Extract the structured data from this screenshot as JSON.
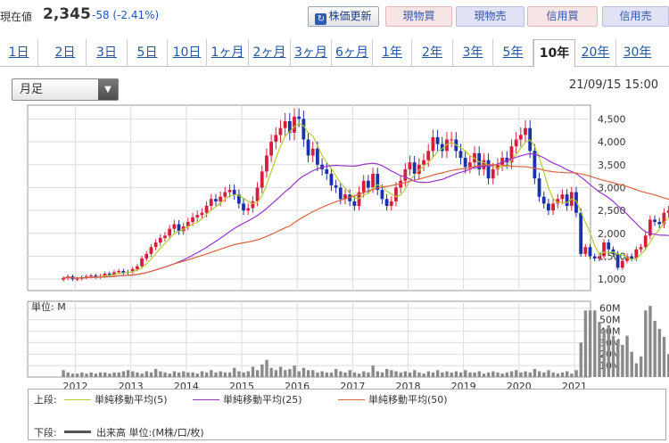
{
  "header": {
    "price_label": "現在値",
    "price": "2,345",
    "change": "-58 (-2.41%)",
    "buttons": {
      "refresh": "株価更新",
      "buy": "現物買",
      "sell": "現物売",
      "margin_buy": "信用買",
      "margin_sell": "信用売"
    }
  },
  "tabs": [
    "1日",
    "2日",
    "3日",
    "5日",
    "10日",
    "1ヶ月",
    "2ヶ月",
    "3ヶ月",
    "6ヶ月",
    "1年",
    "2年",
    "3年",
    "5年",
    "10年",
    "20年",
    "30年"
  ],
  "active_tab": "10年",
  "period_select": "月足",
  "datetime": "21/09/15 15:00",
  "volume_unit": "単位: M",
  "legend": {
    "upper_label": "上段:",
    "lower_label": "下段:",
    "ma5": "単純移動平均(5)",
    "ma25": "単純移動平均(25)",
    "ma50": "単純移動平均(50)",
    "volume": "出来高 単位:(M株/口/枚)"
  },
  "colors": {
    "up": "#d61e3c",
    "down": "#1a32a8",
    "ma5": "#b3cc33",
    "ma25": "#9933cc",
    "ma50": "#d9643f",
    "volume": "#8a8a8a"
  },
  "chart_data": {
    "type": "candlestick",
    "x_labels": [
      "2012",
      "2013",
      "2014",
      "2015",
      "2016",
      "2017",
      "2018",
      "2019",
      "2020",
      "2021"
    ],
    "price_ticks": [
      "4,500",
      "4,000",
      "3,500",
      "3,000",
      "2,500",
      "2,000",
      "1,500",
      "1,000"
    ],
    "price_range": [
      750,
      4800
    ],
    "volume_ticks": [
      "60M",
      "50M",
      "40M",
      "30M",
      "20M",
      "10M"
    ],
    "volume_range": [
      0,
      66
    ],
    "start": "2011-10",
    "close": [
      1020,
      1060,
      1000,
      1010,
      1040,
      1060,
      1080,
      1050,
      1070,
      1120,
      1090,
      1150,
      1180,
      1140,
      1160,
      1220,
      1280,
      1450,
      1550,
      1700,
      1800,
      1900,
      1950,
      2100,
      2200,
      2050,
      2150,
      2250,
      2350,
      2400,
      2450,
      2600,
      2750,
      2700,
      2800,
      2900,
      2950,
      2850,
      2650,
      2500,
      2550,
      2700,
      3000,
      3350,
      3700,
      4000,
      4150,
      4300,
      4450,
      4200,
      4550,
      4500,
      4050,
      3700,
      3850,
      3500,
      3400,
      3300,
      3050,
      3000,
      2750,
      2850,
      2700,
      2600,
      2900,
      3150,
      3000,
      3300,
      2950,
      2750,
      2600,
      2700,
      3000,
      3150,
      3400,
      3550,
      3300,
      3500,
      3600,
      3800,
      4100,
      3950,
      3800,
      4050,
      4050,
      3800,
      3650,
      3450,
      3550,
      3750,
      3400,
      3600,
      3200,
      3400,
      3500,
      3650,
      3550,
      3900,
      4050,
      4150,
      4300,
      3800,
      3200,
      2800,
      2650,
      2500,
      2650,
      2750,
      2850,
      2600,
      2900,
      2450,
      1550,
      1700,
      1500,
      1450,
      1500,
      1800,
      1650,
      1550,
      1250,
      1400,
      1500,
      1450,
      1650,
      1700,
      1950,
      2300,
      2250,
      2200,
      2450,
      2500,
      2450,
      2550,
      2550,
      2500,
      2400,
      2345
    ],
    "volume": [
      6,
      4,
      3,
      3,
      4,
      3,
      4,
      3,
      4,
      4,
      3,
      4,
      4,
      5,
      6,
      5,
      4,
      3,
      5,
      4,
      7,
      5,
      4,
      3,
      5,
      4,
      5,
      4,
      4,
      3,
      5,
      4,
      6,
      4,
      5,
      4,
      4,
      8,
      5,
      4,
      5,
      9,
      6,
      11,
      15,
      8,
      6,
      9,
      6,
      7,
      10,
      5,
      8,
      6,
      6,
      4,
      5,
      4,
      4,
      7,
      5,
      4,
      6,
      4,
      3,
      5,
      4,
      10,
      5,
      4,
      7,
      6,
      5,
      4,
      5,
      4,
      6,
      4,
      3,
      5,
      4,
      6,
      4,
      5,
      4,
      5,
      4,
      6,
      4,
      4,
      5,
      3,
      4,
      5,
      4,
      3,
      4,
      5,
      6,
      4,
      5,
      4,
      7,
      5,
      4,
      6,
      4,
      3,
      4,
      5,
      3,
      6,
      30,
      58,
      58,
      58,
      48,
      42,
      45,
      36,
      32,
      28,
      36,
      22,
      12,
      18,
      58,
      62,
      49,
      42,
      35,
      20,
      34,
      58,
      38,
      42,
      35,
      18
    ]
  }
}
